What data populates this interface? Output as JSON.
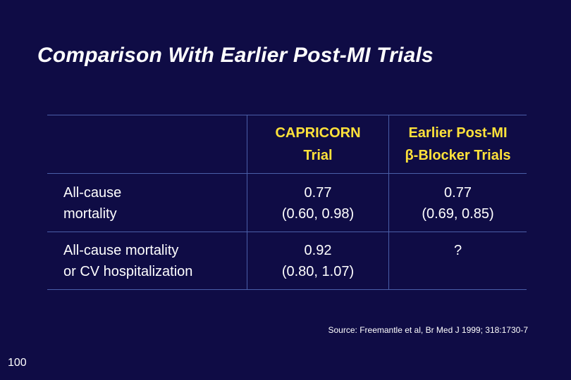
{
  "title": "Comparison With Earlier Post-MI Trials",
  "table": {
    "columns": [
      {
        "line1": "CAPRICORN",
        "line2": "Trial"
      },
      {
        "line1": "Earlier Post-MI",
        "line2": "β-Blocker Trials"
      }
    ],
    "rows": [
      {
        "label_line1": "All-cause",
        "label_line2": "mortality",
        "capricorn_value": "0.77",
        "capricorn_ci": "(0.60, 0.98)",
        "earlier_value": "0.77",
        "earlier_ci": "(0.69, 0.85)"
      },
      {
        "label_line1": "All-cause mortality",
        "label_line2": "or CV hospitalization",
        "capricorn_value": "0.92",
        "capricorn_ci": "(0.80, 1.07)",
        "earlier_value": "?",
        "earlier_ci": ""
      }
    ]
  },
  "source": "Source: Freemantle et al, Br Med J 1999; 318:1730-7",
  "page_number": "100",
  "colors": {
    "background": "#0f0c45",
    "header_text": "#ffe23a",
    "body_text": "#ffffff",
    "rule": "#4a5fa8"
  }
}
